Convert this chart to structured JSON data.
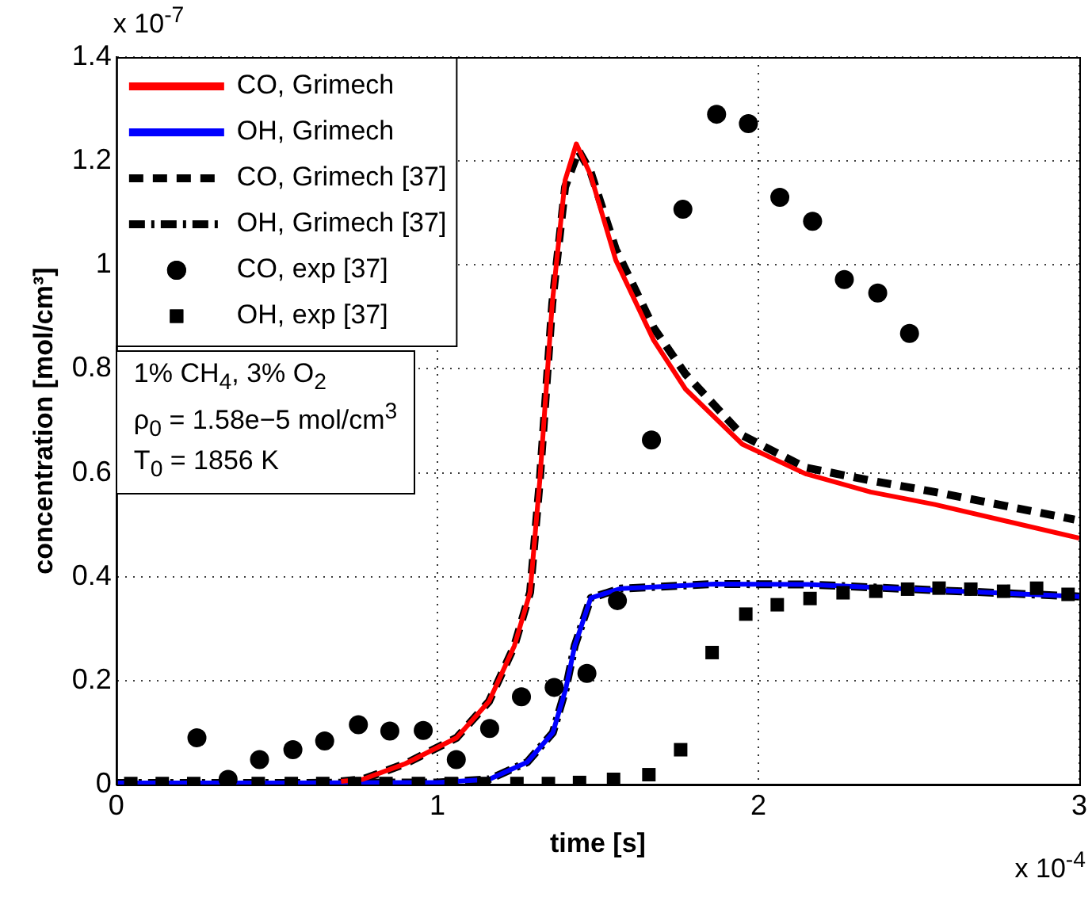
{
  "chart_data": {
    "type": "line",
    "xlabel": "time [s]",
    "ylabel": "concentration [mol/cm³]",
    "xlim": [
      0,
      3
    ],
    "xticks": [
      0,
      1,
      2,
      3
    ],
    "ylim": [
      0,
      1.4
    ],
    "yticks": [
      0,
      {
        "value": 0.2,
        "label": "0.2"
      },
      {
        "value": 0.4,
        "label": "0.4"
      },
      {
        "value": 0.6,
        "label": "0.6"
      },
      {
        "value": 0.8,
        "label": "0.8"
      },
      1,
      {
        "value": 1.2,
        "label": "1.2"
      },
      {
        "value": 1.4,
        "label": "1.4"
      }
    ],
    "grid": true,
    "legend": "top left",
    "annotations": [
      "x 10$^{-7}$",
      "x 10$^{-4}$",
      "1% CH$_{4}$, 3% O$_{2}$",
      "ρ$_{0}$ = 1.58e−5 mol/cm$^{3}$",
      "T$_{0}$ = 1856 K"
    ],
    "series": [
      {
        "name": "CO, Grimech",
        "type": "line",
        "color": "#ff0000",
        "line_style": "solid",
        "marker": "none",
        "x": [
          0.7,
          0.767,
          0.9,
          1.06,
          1.161,
          1.24,
          1.289,
          1.319,
          1.358,
          1.398,
          1.433,
          1.477,
          1.556,
          1.674,
          1.773,
          1.95,
          2.147,
          2.35,
          2.55,
          3.0
        ],
        "values": [
          0.006,
          0.01,
          0.04,
          0.09,
          0.16,
          0.267,
          0.37,
          0.584,
          0.926,
          1.163,
          1.233,
          1.174,
          1.009,
          0.855,
          0.761,
          0.655,
          0.598,
          0.563,
          0.539,
          0.474
        ]
      },
      {
        "name": "OH, Grimech",
        "type": "line",
        "color": "#0000ff",
        "line_style": "solid",
        "marker": "none",
        "x": [
          0,
          0.5,
          1.0,
          1.161,
          1.28,
          1.36,
          1.4,
          1.428,
          1.478,
          1.57,
          1.863,
          2.155,
          2.55,
          3.0
        ],
        "values": [
          0.003,
          0.003,
          0.004,
          0.01,
          0.043,
          0.1,
          0.184,
          0.267,
          0.359,
          0.377,
          0.386,
          0.385,
          0.374,
          0.362
        ]
      },
      {
        "name": "CO, Grimech [37]",
        "type": "line",
        "color": "#000000",
        "line_style": "dashed",
        "marker": "none",
        "x": [
          0.7,
          0.767,
          0.9,
          1.06,
          1.161,
          1.24,
          1.289,
          1.319,
          1.358,
          1.398,
          1.44,
          1.477,
          1.556,
          1.674,
          1.773,
          1.95,
          2.147,
          2.35,
          2.55,
          2.985
        ],
        "values": [
          0.006,
          0.01,
          0.04,
          0.09,
          0.16,
          0.267,
          0.37,
          0.584,
          0.926,
          1.15,
          1.22,
          1.18,
          1.03,
          0.879,
          0.79,
          0.672,
          0.61,
          0.585,
          0.563,
          0.51
        ]
      },
      {
        "name": "OH, Grimech [37]",
        "type": "line",
        "color": "#000000",
        "line_style": "dashdot",
        "marker": "none",
        "x": [
          0,
          0.5,
          1.0,
          1.161,
          1.28,
          1.36,
          1.4,
          1.428,
          1.478,
          1.57,
          1.863,
          2.155,
          2.55,
          3.0
        ],
        "values": [
          0.003,
          0.003,
          0.004,
          0.01,
          0.043,
          0.1,
          0.184,
          0.267,
          0.359,
          0.377,
          0.386,
          0.385,
          0.374,
          0.362
        ]
      },
      {
        "name": "CO, exp [37]",
        "type": "scatter",
        "color": "#000000",
        "marker": "circle",
        "x": [
          0.251,
          0.348,
          0.446,
          0.55,
          0.649,
          0.754,
          0.852,
          0.956,
          1.059,
          1.163,
          1.262,
          1.364,
          1.466,
          1.561,
          1.667,
          1.765,
          1.87,
          1.969,
          2.067,
          2.169,
          2.268,
          2.372,
          2.471
        ],
        "values": [
          0.09,
          0.01,
          0.048,
          0.067,
          0.084,
          0.115,
          0.103,
          0.104,
          0.048,
          0.108,
          0.169,
          0.187,
          0.214,
          0.354,
          0.663,
          1.107,
          1.29,
          1.272,
          1.13,
          1.084,
          0.972,
          0.946,
          0.868
        ]
      },
      {
        "name": "OH, exp [37]",
        "type": "scatter",
        "color": "#000000",
        "marker": "square",
        "x": [
          0.045,
          0.143,
          0.241,
          0.344,
          0.442,
          0.545,
          0.643,
          0.742,
          0.84,
          0.941,
          1.043,
          1.145,
          1.248,
          1.346,
          1.443,
          1.549,
          1.659,
          1.758,
          1.856,
          1.961,
          2.059,
          2.161,
          2.264,
          2.366,
          2.465,
          2.563,
          2.662,
          2.764,
          2.867,
          2.965
        ],
        "values": [
          0.002,
          0.002,
          0.002,
          null,
          0.002,
          0.002,
          0.002,
          0.002,
          0.002,
          0.002,
          0.002,
          0.002,
          0.002,
          0.002,
          0.004,
          0.01,
          0.019,
          0.067,
          0.254,
          0.328,
          0.346,
          0.358,
          0.369,
          0.372,
          0.376,
          0.378,
          0.376,
          0.372,
          0.378,
          0.366
        ]
      }
    ]
  }
}
